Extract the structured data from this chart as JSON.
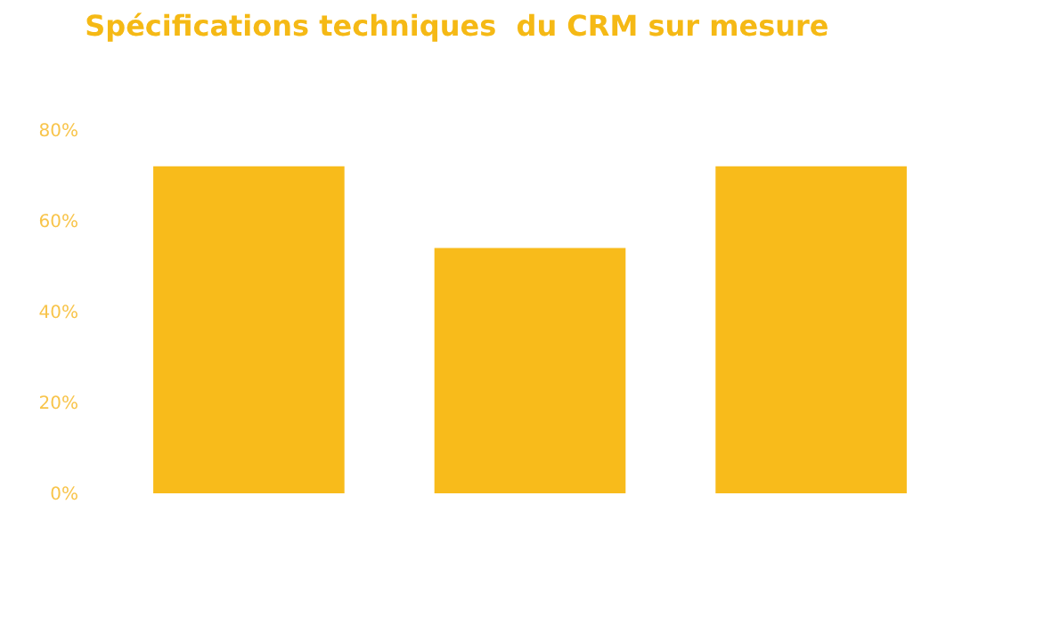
{
  "chart_data": {
    "type": "bar",
    "title": "Spécifications techniques  du CRM sur mesure",
    "categories": [
      null,
      null,
      null
    ],
    "series": [
      {
        "color": "#f8bb1b",
        "values": [
          72,
          54,
          72
        ]
      }
    ],
    "ylim": [
      0,
      80
    ],
    "yticks": [
      {
        "value": 0,
        "label": "0%"
      },
      {
        "value": 20,
        "label": "20%"
      },
      {
        "value": 40,
        "label": "40%"
      },
      {
        "value": 60,
        "label": "60%"
      },
      {
        "value": 80,
        "label": "80%"
      }
    ],
    "legend": false
  }
}
